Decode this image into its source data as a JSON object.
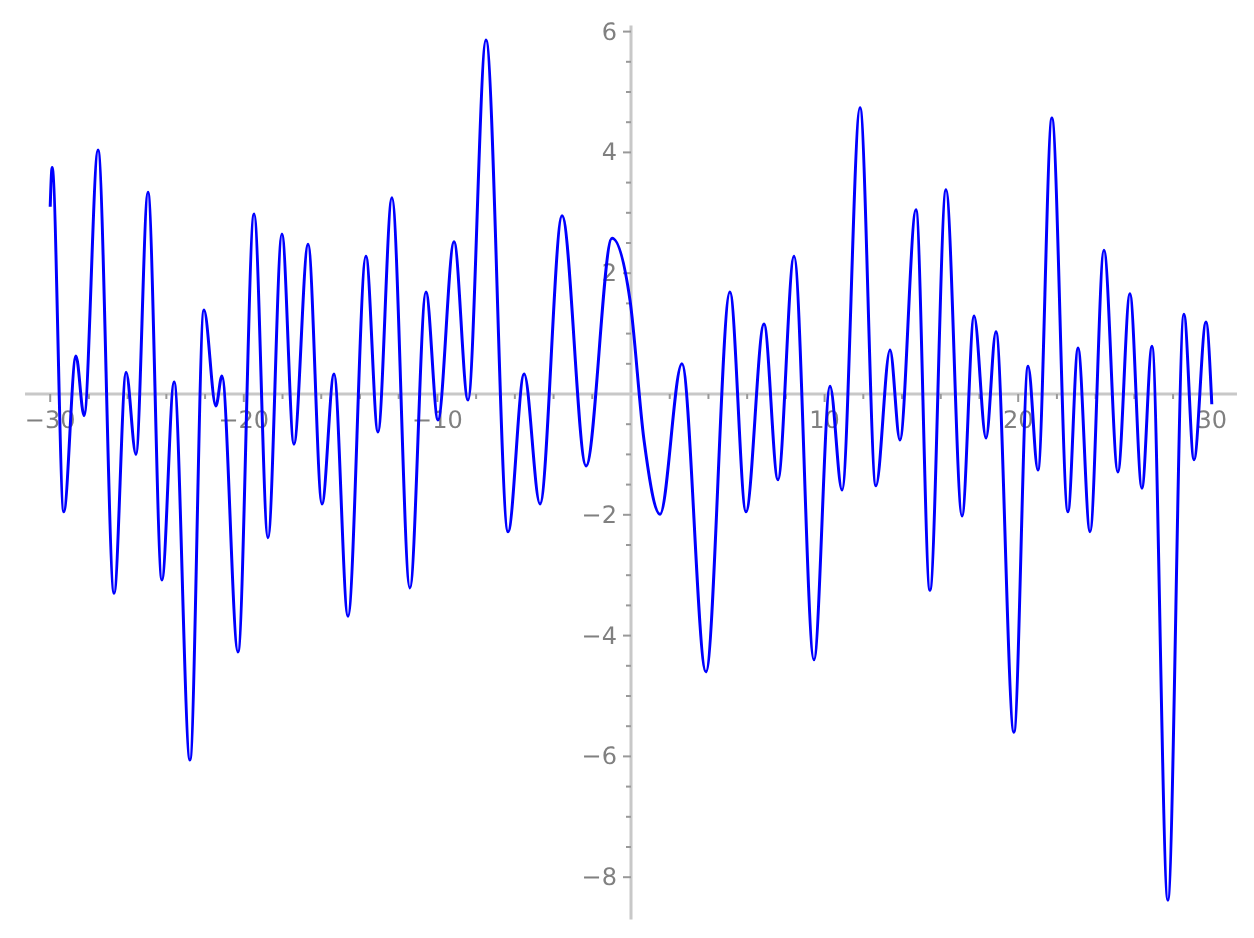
{
  "chart_data": {
    "type": "line",
    "x": [
      -30,
      -29.9,
      -29.3,
      -28.67,
      -28.25,
      -27.53,
      -26.7,
      -26.08,
      -25.57,
      -24.95,
      -24.23,
      -23.6,
      -22.78,
      -22.06,
      -21.44,
      -21.13,
      -20.3,
      -19.47,
      -18.75,
      -18.03,
      -17.41,
      -16.68,
      -15.96,
      -15.34,
      -14.62,
      -13.69,
      -13.07,
      -12.35,
      -11.42,
      -10.59,
      -9.97,
      -9.14,
      -8.42,
      -7.49,
      -6.35,
      -5.52,
      -4.7,
      -3.56,
      -2.32,
      -0.98,
      -0.05,
      0.67,
      1.5,
      2.63,
      3.87,
      5.11,
      5.94,
      6.87,
      7.59,
      8.42,
      9.45,
      10.28,
      10.9,
      11.83,
      12.65,
      13.38,
      13.89,
      14.72,
      15.44,
      16.27,
      17.1,
      17.72,
      18.34,
      18.85,
      19.78,
      20.51,
      21.02,
      21.74,
      22.57,
      23.09,
      23.71,
      24.43,
      25.15,
      25.77,
      26.39,
      26.91,
      27.73,
      28.56,
      29.08,
      29.7,
      30
    ],
    "series": [
      {
        "color": "#0000ff",
        "values": [
          3.1,
          3.75,
          -1.95,
          0.63,
          -0.36,
          4.04,
          -3.3,
          0.36,
          -1.0,
          3.34,
          -3.08,
          0.2,
          -6.06,
          1.39,
          -0.2,
          0.3,
          -4.27,
          2.98,
          -2.38,
          2.65,
          -0.83,
          2.48,
          -1.82,
          0.33,
          -3.68,
          2.28,
          -0.63,
          3.25,
          -3.21,
          1.69,
          -0.43,
          2.52,
          -0.1,
          5.86,
          -2.28,
          0.33,
          -1.82,
          2.95,
          -1.19,
          2.58,
          1.55,
          -0.76,
          -1.99,
          0.5,
          -4.6,
          1.69,
          -1.95,
          1.16,
          -1.42,
          2.28,
          -4.4,
          0.13,
          -1.59,
          4.74,
          -1.52,
          0.73,
          -0.76,
          3.05,
          -3.25,
          3.38,
          -2.02,
          1.29,
          -0.73,
          1.03,
          -5.6,
          0.46,
          -1.26,
          4.57,
          -1.95,
          0.76,
          -2.28,
          2.38,
          -1.29,
          1.66,
          -1.56,
          0.79,
          -8.38,
          1.32,
          -1.09,
          1.19,
          -0.17
        ]
      }
    ],
    "xlim": [
      -31.3,
      31.3
    ],
    "ylim": [
      -8.7,
      6.1
    ],
    "xticks": [
      -30,
      {
        "value": -28,
        "label": null
      },
      {
        "value": -26,
        "label": null
      },
      {
        "value": -24,
        "label": null
      },
      {
        "value": -22,
        "label": null
      },
      -20,
      {
        "value": -18,
        "label": null
      },
      {
        "value": -16,
        "label": null
      },
      {
        "value": -14,
        "label": null
      },
      {
        "value": -12,
        "label": null
      },
      -10,
      {
        "value": -8,
        "label": null
      },
      {
        "value": -6,
        "label": null
      },
      {
        "value": -4,
        "label": null
      },
      {
        "value": -2,
        "label": null
      },
      {
        "value": 2,
        "label": null
      },
      {
        "value": 4,
        "label": null
      },
      {
        "value": 6,
        "label": null
      },
      {
        "value": 8,
        "label": null
      },
      10,
      {
        "value": 12,
        "label": null
      },
      {
        "value": 14,
        "label": null
      },
      {
        "value": 16,
        "label": null
      },
      {
        "value": 18,
        "label": null
      },
      20,
      {
        "value": 22,
        "label": null
      },
      {
        "value": 24,
        "label": null
      },
      {
        "value": 26,
        "label": null
      },
      {
        "value": 28,
        "label": null
      },
      30
    ],
    "yticks": [
      -8,
      {
        "value": -7.5,
        "label": null
      },
      {
        "value": -7,
        "label": null
      },
      {
        "value": -6.5,
        "label": null
      },
      -6,
      {
        "value": -5.5,
        "label": null
      },
      {
        "value": -5,
        "label": null
      },
      {
        "value": -4.5,
        "label": null
      },
      -4,
      {
        "value": -3.5,
        "label": null
      },
      {
        "value": -3,
        "label": null
      },
      {
        "value": -2.5,
        "label": null
      },
      -2,
      {
        "value": -1.5,
        "label": null
      },
      {
        "value": -1,
        "label": null
      },
      {
        "value": -0.5,
        "label": null
      },
      {
        "value": 0.5,
        "label": null
      },
      {
        "value": 1,
        "label": null
      },
      {
        "value": 1.5,
        "label": null
      },
      2,
      {
        "value": 2.5,
        "label": null
      },
      {
        "value": 3,
        "label": null
      },
      {
        "value": 3.5,
        "label": null
      },
      4,
      {
        "value": 4.5,
        "label": null
      },
      {
        "value": 5,
        "label": null
      },
      {
        "value": 5.5,
        "label": null
      },
      6
    ],
    "grid": false,
    "marker": "none",
    "line_style": "solid"
  }
}
